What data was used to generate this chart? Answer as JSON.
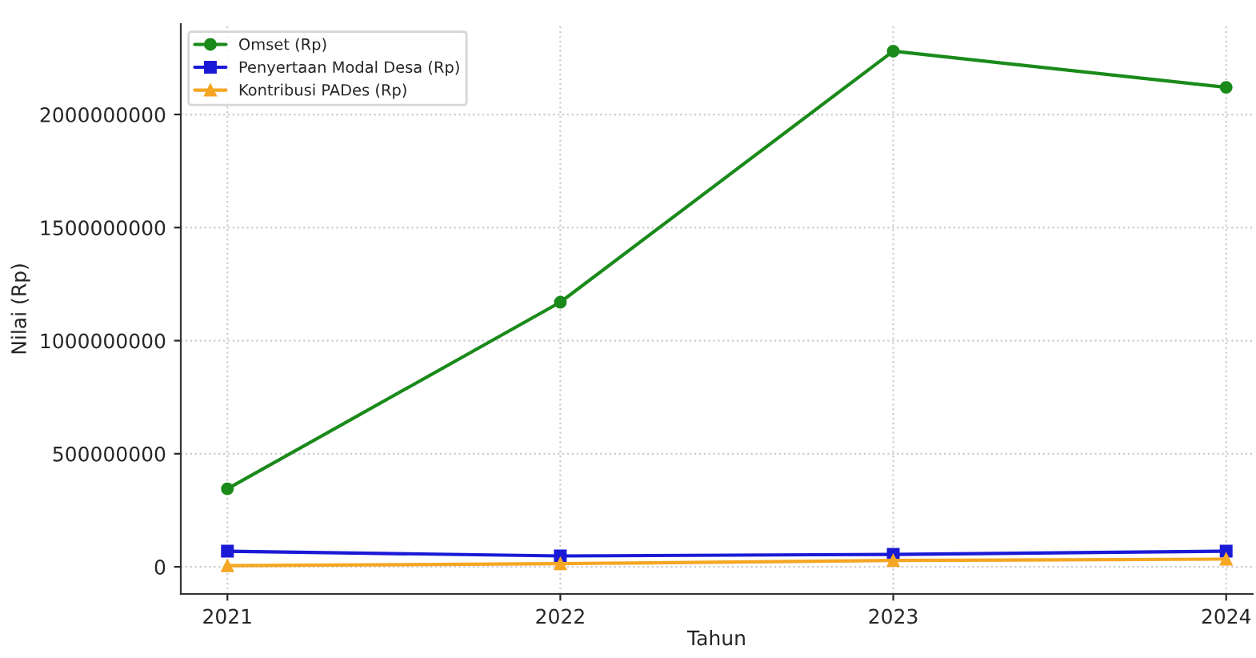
{
  "chart_data": {
    "type": "line",
    "xlabel": "Tahun",
    "ylabel": "Nilai (Rp)",
    "x": [
      2021,
      2022,
      2023,
      2024
    ],
    "series": [
      {
        "name": "Omset (Rp)",
        "color": "#1a8a1a",
        "marker": "circle",
        "values": [
          345000000,
          1170000000,
          2280000000,
          2120000000
        ]
      },
      {
        "name": "Penyertaan Modal Desa (Rp)",
        "color": "#1a1ad6",
        "marker": "square",
        "values": [
          69000000,
          48000000,
          55000000,
          69000000
        ]
      },
      {
        "name": "Kontribusi PADes (Rp)",
        "color": "#f5a623",
        "marker": "triangle",
        "values": [
          5000000,
          14000000,
          28000000,
          34000000
        ]
      }
    ],
    "xlim": [
      2020.86,
      2024.08
    ],
    "xticks": [
      2021,
      2022,
      2023,
      2024
    ],
    "ylim": [
      -120000000,
      2400000000
    ],
    "yticks": [
      0,
      500000000,
      1000000000,
      1500000000,
      2000000000
    ],
    "grid": true,
    "legend": "top left",
    "line_style": "solid"
  }
}
